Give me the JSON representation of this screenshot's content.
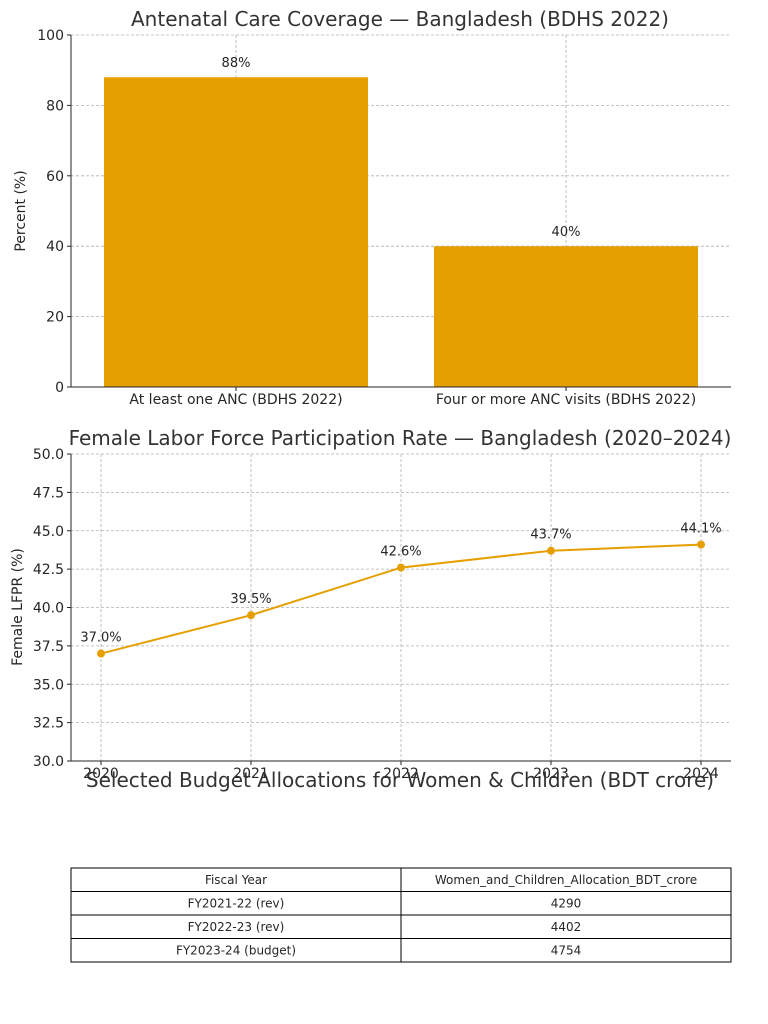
{
  "colors": {
    "accent": "#E69F00",
    "text": "#262626",
    "grid": "#b0b0b0"
  },
  "chart_data": [
    {
      "type": "bar",
      "title": "Antenatal Care Coverage — Bangladesh (BDHS 2022)",
      "xlabel": "",
      "ylabel": "Percent (%)",
      "ylim": [
        0,
        100
      ],
      "yticks": [
        0,
        20,
        40,
        60,
        80,
        100
      ],
      "categories": [
        "At least one ANC (BDHS 2022)",
        "Four or more ANC visits (BDHS 2022)"
      ],
      "values": [
        88,
        40
      ],
      "data_labels": [
        "88%",
        "40%"
      ],
      "grid": true
    },
    {
      "type": "line",
      "title": "Female Labor Force Participation Rate — Bangladesh (2020–2024)",
      "xlabel": "",
      "ylabel": "Female LFPR (%)",
      "ylim": [
        30,
        50
      ],
      "yticks": [
        "30.0",
        "32.5",
        "35.0",
        "37.5",
        "40.0",
        "42.5",
        "45.0",
        "47.5",
        "50.0"
      ],
      "x": [
        "2020",
        "2021",
        "2022",
        "2023",
        "2024"
      ],
      "values": [
        37.0,
        39.5,
        42.6,
        43.7,
        44.1
      ],
      "data_labels": [
        "37.0%",
        "39.5%",
        "42.6%",
        "43.7%",
        "44.1%"
      ],
      "grid": true
    },
    {
      "type": "table",
      "title": "Selected Budget Allocations for Women & Children (BDT crore)",
      "columns": [
        "Fiscal Year",
        "Women_and_Children_Allocation_BDT_crore"
      ],
      "rows": [
        [
          "FY2021-22 (rev)",
          "4290"
        ],
        [
          "FY2022-23 (rev)",
          "4402"
        ],
        [
          "FY2023-24 (budget)",
          "4754"
        ]
      ]
    }
  ]
}
